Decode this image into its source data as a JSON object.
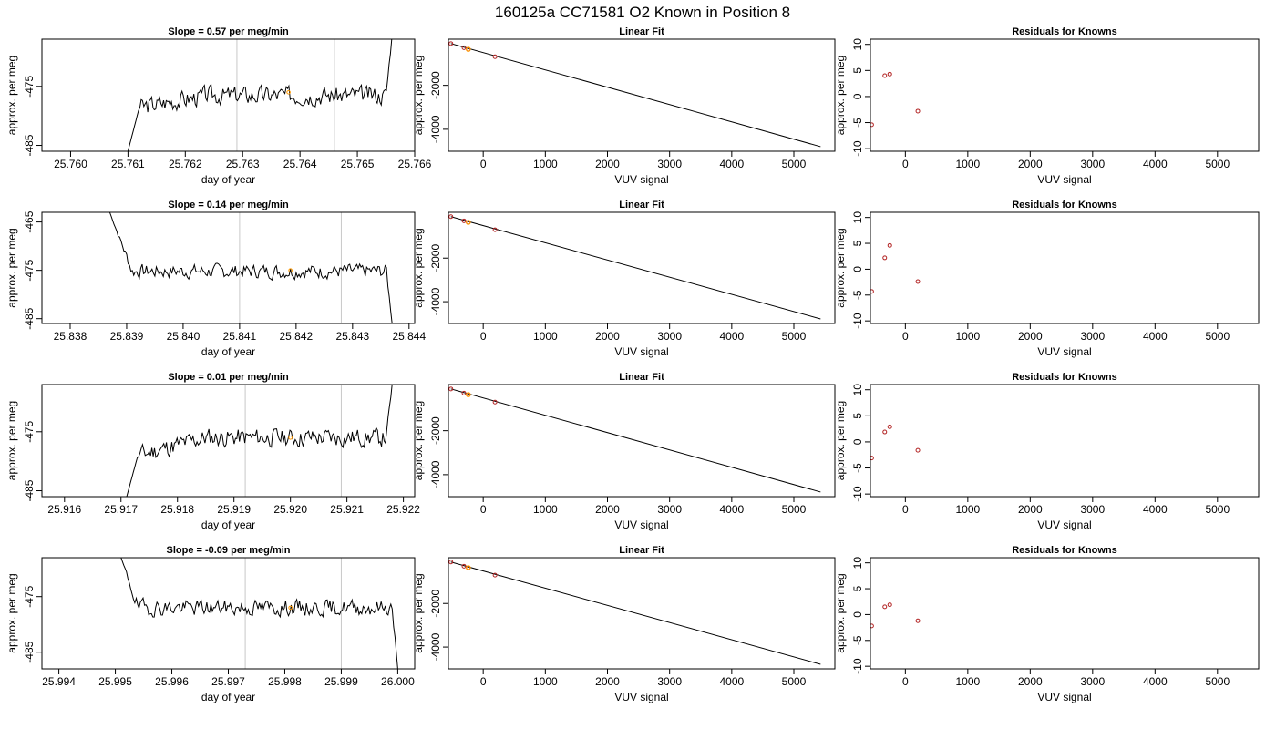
{
  "title": "160125a     CC71581   O2 Known in Position  8",
  "colors": {
    "trace": "#000000",
    "vline": "#c8c8c8",
    "highlight": "#ff9900",
    "resid": "#b22222",
    "frame": "#000000"
  },
  "chart_data": [
    {
      "type": "line",
      "row": 0,
      "col": 0,
      "title": "Slope =  0.57  per meg/min",
      "xlabel": "day of year",
      "ylabel": "approx. per meg",
      "xlim": [
        25.7595,
        25.766
      ],
      "ylim": [
        -486,
        -467
      ],
      "xticks": [
        {
          "v": 25.76,
          "label": "25.760"
        },
        {
          "v": 25.761,
          "label": "25.761"
        },
        {
          "v": 25.762,
          "label": "25.762"
        },
        {
          "v": 25.763,
          "label": "25.763"
        },
        {
          "v": 25.764,
          "label": "25.764"
        },
        {
          "v": 25.765,
          "label": "25.765"
        },
        {
          "v": 25.766,
          "label": "25.766"
        }
      ],
      "yticks": [
        {
          "v": -475,
          "label": "-475"
        },
        {
          "v": -485,
          "label": "-485"
        }
      ],
      "vlines": [
        25.7629,
        25.7646
      ],
      "trace": {
        "x0": 25.761,
        "x1": 25.7656,
        "n": 200,
        "rise_x": 25.7612,
        "rise_from": -486,
        "plateau": -476.5,
        "start_v": -478.5,
        "noise": 1.4,
        "end_x": 25.7655,
        "end_to": -467,
        "seed": 3
      },
      "marker": {
        "x": 25.7638,
        "y": -476
      }
    },
    {
      "type": "scatter",
      "row": 0,
      "col": 1,
      "title": "Linear Fit",
      "xlabel": "VUV signal",
      "ylabel": "approx. per meg",
      "xlim": [
        -560,
        5660
      ],
      "ylim": [
        -5000,
        100
      ],
      "xticks": [
        {
          "v": 0,
          "label": "0"
        },
        {
          "v": 1000,
          "label": "1000"
        },
        {
          "v": 2000,
          "label": "2000"
        },
        {
          "v": 3000,
          "label": "3000"
        },
        {
          "v": 4000,
          "label": "4000"
        },
        {
          "v": 5000,
          "label": "5000"
        }
      ],
      "yticks": [
        {
          "v": -2000,
          "label": "-2000"
        },
        {
          "v": -4000,
          "label": "-4000"
        }
      ],
      "line": [
        [
          -520,
          -100
        ],
        [
          5430,
          -4790
        ]
      ],
      "points": [
        {
          "x": -520,
          "y": -100
        },
        {
          "x": -310,
          "y": -290
        },
        {
          "x": -240,
          "y": -360
        },
        {
          "x": 190,
          "y": -700
        }
      ],
      "marker": {
        "x": -240,
        "y": -360
      }
    },
    {
      "type": "scatter",
      "row": 0,
      "col": 2,
      "title": "Residuals for Knowns",
      "xlabel": "VUV signal",
      "ylabel": "approx. per meg",
      "xlim": [
        -560,
        5660
      ],
      "ylim": [
        -10.5,
        11
      ],
      "xticks": [
        {
          "v": 0,
          "label": "0"
        },
        {
          "v": 1000,
          "label": "1000"
        },
        {
          "v": 2000,
          "label": "2000"
        },
        {
          "v": 3000,
          "label": "3000"
        },
        {
          "v": 4000,
          "label": "4000"
        },
        {
          "v": 5000,
          "label": "5000"
        }
      ],
      "yticks": [
        {
          "v": 10,
          "label": "10"
        },
        {
          "v": 5,
          "label": "5"
        },
        {
          "v": 0,
          "label": "0"
        },
        {
          "v": -5,
          "label": "-5"
        },
        {
          "v": -10,
          "label": "-10"
        }
      ],
      "points": [
        {
          "x": -540,
          "y": -5.4
        },
        {
          "x": -330,
          "y": 4.0
        },
        {
          "x": -250,
          "y": 4.3
        },
        {
          "x": 200,
          "y": -2.8
        }
      ]
    },
    {
      "type": "line",
      "row": 1,
      "col": 0,
      "title": "Slope =  0.14  per meg/min",
      "xlabel": "day of year",
      "ylabel": "approx. per meg",
      "xlim": [
        25.8375,
        25.8441
      ],
      "ylim": [
        -486,
        -463
      ],
      "xticks": [
        {
          "v": 25.838,
          "label": "25.838"
        },
        {
          "v": 25.839,
          "label": "25.839"
        },
        {
          "v": 25.84,
          "label": "25.840"
        },
        {
          "v": 25.841,
          "label": "25.841"
        },
        {
          "v": 25.842,
          "label": "25.842"
        },
        {
          "v": 25.843,
          "label": "25.843"
        },
        {
          "v": 25.844,
          "label": "25.844"
        }
      ],
      "yticks": [
        {
          "v": -465,
          "label": "-465"
        },
        {
          "v": -475,
          "label": "-475"
        },
        {
          "v": -485,
          "label": "-485"
        }
      ],
      "vlines": [
        25.841,
        25.8428
      ],
      "trace": {
        "x0": 25.8387,
        "x1": 25.8437,
        "n": 200,
        "fall_x": 25.8391,
        "fall_from": -463,
        "plateau": -475.2,
        "noise": 1.3,
        "end_x": 25.8436,
        "end_to": -486,
        "seed": 7
      },
      "marker": {
        "x": 25.8419,
        "y": -475
      }
    },
    {
      "type": "scatter",
      "row": 1,
      "col": 1,
      "title": "Linear Fit",
      "xlabel": "VUV signal",
      "ylabel": "approx. per meg",
      "xlim": [
        -560,
        5660
      ],
      "ylim": [
        -5000,
        100
      ],
      "xticks": [
        {
          "v": 0,
          "label": "0"
        },
        {
          "v": 1000,
          "label": "1000"
        },
        {
          "v": 2000,
          "label": "2000"
        },
        {
          "v": 3000,
          "label": "3000"
        },
        {
          "v": 4000,
          "label": "4000"
        },
        {
          "v": 5000,
          "label": "5000"
        }
      ],
      "yticks": [
        {
          "v": -2000,
          "label": "-2000"
        },
        {
          "v": -4000,
          "label": "-4000"
        }
      ],
      "line": [
        [
          -520,
          -100
        ],
        [
          5430,
          -4790
        ]
      ],
      "points": [
        {
          "x": -520,
          "y": -100
        },
        {
          "x": -310,
          "y": -290
        },
        {
          "x": -240,
          "y": -360
        },
        {
          "x": 190,
          "y": -700
        }
      ],
      "marker": {
        "x": -240,
        "y": -360
      }
    },
    {
      "type": "scatter",
      "row": 1,
      "col": 2,
      "title": "Residuals for Knowns",
      "xlabel": "VUV signal",
      "ylabel": "approx. per meg",
      "xlim": [
        -560,
        5660
      ],
      "ylim": [
        -10.5,
        11
      ],
      "xticks": [
        {
          "v": 0,
          "label": "0"
        },
        {
          "v": 1000,
          "label": "1000"
        },
        {
          "v": 2000,
          "label": "2000"
        },
        {
          "v": 3000,
          "label": "3000"
        },
        {
          "v": 4000,
          "label": "4000"
        },
        {
          "v": 5000,
          "label": "5000"
        }
      ],
      "yticks": [
        {
          "v": 10,
          "label": "10"
        },
        {
          "v": 5,
          "label": "5"
        },
        {
          "v": 0,
          "label": "0"
        },
        {
          "v": -5,
          "label": "-5"
        },
        {
          "v": -10,
          "label": "-10"
        }
      ],
      "points": [
        {
          "x": -540,
          "y": -4.3
        },
        {
          "x": -330,
          "y": 2.2
        },
        {
          "x": -250,
          "y": 4.6
        },
        {
          "x": 200,
          "y": -2.4
        }
      ]
    },
    {
      "type": "line",
      "row": 2,
      "col": 0,
      "title": "Slope =  0.01  per meg/min",
      "xlabel": "day of year",
      "ylabel": "approx. per meg",
      "xlim": [
        25.9156,
        25.9222
      ],
      "ylim": [
        -486,
        -467
      ],
      "xticks": [
        {
          "v": 25.916,
          "label": "25.916"
        },
        {
          "v": 25.917,
          "label": "25.917"
        },
        {
          "v": 25.918,
          "label": "25.918"
        },
        {
          "v": 25.919,
          "label": "25.919"
        },
        {
          "v": 25.92,
          "label": "25.920"
        },
        {
          "v": 25.921,
          "label": "25.921"
        },
        {
          "v": 25.922,
          "label": "25.922"
        }
      ],
      "yticks": [
        {
          "v": -475,
          "label": "-475"
        },
        {
          "v": -485,
          "label": "-485"
        }
      ],
      "vlines": [
        25.9192,
        25.9209
      ],
      "trace": {
        "x0": 25.9171,
        "x1": 25.9218,
        "n": 200,
        "rise_x": 25.9173,
        "rise_from": -486,
        "plateau": -476,
        "start_v": -479,
        "noise": 1.4,
        "end_x": 25.9217,
        "end_to": -467,
        "seed": 11
      },
      "marker": {
        "x": 25.92,
        "y": -476
      }
    },
    {
      "type": "scatter",
      "row": 2,
      "col": 1,
      "title": "Linear Fit",
      "xlabel": "VUV signal",
      "ylabel": "approx. per meg",
      "xlim": [
        -560,
        5660
      ],
      "ylim": [
        -5000,
        100
      ],
      "xticks": [
        {
          "v": 0,
          "label": "0"
        },
        {
          "v": 1000,
          "label": "1000"
        },
        {
          "v": 2000,
          "label": "2000"
        },
        {
          "v": 3000,
          "label": "3000"
        },
        {
          "v": 4000,
          "label": "4000"
        },
        {
          "v": 5000,
          "label": "5000"
        }
      ],
      "yticks": [
        {
          "v": -2000,
          "label": "-2000"
        },
        {
          "v": -4000,
          "label": "-4000"
        }
      ],
      "line": [
        [
          -520,
          -100
        ],
        [
          5430,
          -4790
        ]
      ],
      "points": [
        {
          "x": -520,
          "y": -100
        },
        {
          "x": -310,
          "y": -290
        },
        {
          "x": -240,
          "y": -360
        },
        {
          "x": 190,
          "y": -700
        }
      ],
      "marker": {
        "x": -240,
        "y": -360
      }
    },
    {
      "type": "scatter",
      "row": 2,
      "col": 2,
      "title": "Residuals for Knowns",
      "xlabel": "VUV signal",
      "ylabel": "approx. per meg",
      "xlim": [
        -560,
        5660
      ],
      "ylim": [
        -10.5,
        11
      ],
      "xticks": [
        {
          "v": 0,
          "label": "0"
        },
        {
          "v": 1000,
          "label": "1000"
        },
        {
          "v": 2000,
          "label": "2000"
        },
        {
          "v": 3000,
          "label": "3000"
        },
        {
          "v": 4000,
          "label": "4000"
        },
        {
          "v": 5000,
          "label": "5000"
        }
      ],
      "yticks": [
        {
          "v": 10,
          "label": "10"
        },
        {
          "v": 5,
          "label": "5"
        },
        {
          "v": 0,
          "label": "0"
        },
        {
          "v": -5,
          "label": "-5"
        },
        {
          "v": -10,
          "label": "-10"
        }
      ],
      "points": [
        {
          "x": -540,
          "y": -3.1
        },
        {
          "x": -330,
          "y": 1.9
        },
        {
          "x": -250,
          "y": 2.9
        },
        {
          "x": 200,
          "y": -1.6
        }
      ]
    },
    {
      "type": "line",
      "row": 3,
      "col": 0,
      "title": "Slope =  -0.09  per meg/min",
      "xlabel": "day of year",
      "ylabel": "approx. per meg",
      "xlim": [
        25.9937,
        26.0003
      ],
      "ylim": [
        -488,
        -468
      ],
      "xticks": [
        {
          "v": 25.994,
          "label": "25.994"
        },
        {
          "v": 25.995,
          "label": "25.995"
        },
        {
          "v": 25.996,
          "label": "25.996"
        },
        {
          "v": 25.997,
          "label": "25.997"
        },
        {
          "v": 25.998,
          "label": "25.998"
        },
        {
          "v": 25.999,
          "label": "25.999"
        },
        {
          "v": 26.0,
          "label": "26.000"
        }
      ],
      "yticks": [
        {
          "v": -475,
          "label": "-475"
        },
        {
          "v": -485,
          "label": "-485"
        }
      ],
      "vlines": [
        25.9973,
        25.999
      ],
      "trace": {
        "x0": 25.9951,
        "x1": 26.0,
        "n": 200,
        "fall_x": 25.9954,
        "fall_from": -468,
        "plateau": -477,
        "noise": 1.3,
        "end_x": 25.9999,
        "end_to": -488,
        "seed": 19
      },
      "marker": {
        "x": 25.9981,
        "y": -477
      }
    },
    {
      "type": "scatter",
      "row": 3,
      "col": 1,
      "title": "Linear Fit",
      "xlabel": "VUV signal",
      "ylabel": "approx. per meg",
      "xlim": [
        -560,
        5660
      ],
      "ylim": [
        -5000,
        100
      ],
      "xticks": [
        {
          "v": 0,
          "label": "0"
        },
        {
          "v": 1000,
          "label": "1000"
        },
        {
          "v": 2000,
          "label": "2000"
        },
        {
          "v": 3000,
          "label": "3000"
        },
        {
          "v": 4000,
          "label": "4000"
        },
        {
          "v": 5000,
          "label": "5000"
        }
      ],
      "yticks": [
        {
          "v": -2000,
          "label": "-2000"
        },
        {
          "v": -4000,
          "label": "-4000"
        }
      ],
      "line": [
        [
          -520,
          -100
        ],
        [
          5430,
          -4790
        ]
      ],
      "points": [
        {
          "x": -520,
          "y": -100
        },
        {
          "x": -310,
          "y": -290
        },
        {
          "x": -240,
          "y": -360
        },
        {
          "x": 190,
          "y": -700
        }
      ],
      "marker": {
        "x": -240,
        "y": -360
      }
    },
    {
      "type": "scatter",
      "row": 3,
      "col": 2,
      "title": "Residuals for Knowns",
      "xlabel": "VUV signal",
      "ylabel": "approx. per meg",
      "xlim": [
        -560,
        5660
      ],
      "ylim": [
        -10.5,
        11
      ],
      "xticks": [
        {
          "v": 0,
          "label": "0"
        },
        {
          "v": 1000,
          "label": "1000"
        },
        {
          "v": 2000,
          "label": "2000"
        },
        {
          "v": 3000,
          "label": "3000"
        },
        {
          "v": 4000,
          "label": "4000"
        },
        {
          "v": 5000,
          "label": "5000"
        }
      ],
      "yticks": [
        {
          "v": 10,
          "label": "10"
        },
        {
          "v": 5,
          "label": "5"
        },
        {
          "v": 0,
          "label": "0"
        },
        {
          "v": -5,
          "label": "-5"
        },
        {
          "v": -10,
          "label": "-10"
        }
      ],
      "points": [
        {
          "x": -540,
          "y": -2.2
        },
        {
          "x": -330,
          "y": 1.5
        },
        {
          "x": -250,
          "y": 1.9
        },
        {
          "x": 200,
          "y": -1.2
        }
      ]
    }
  ]
}
